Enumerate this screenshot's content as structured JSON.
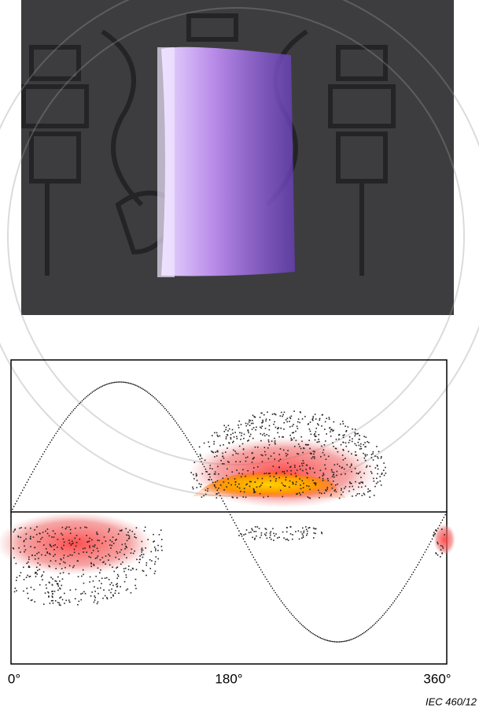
{
  "figure": {
    "axis": {
      "tick_labels": [
        "0°",
        "180°",
        "360°"
      ]
    },
    "credit": "IEC  460/12"
  }
}
